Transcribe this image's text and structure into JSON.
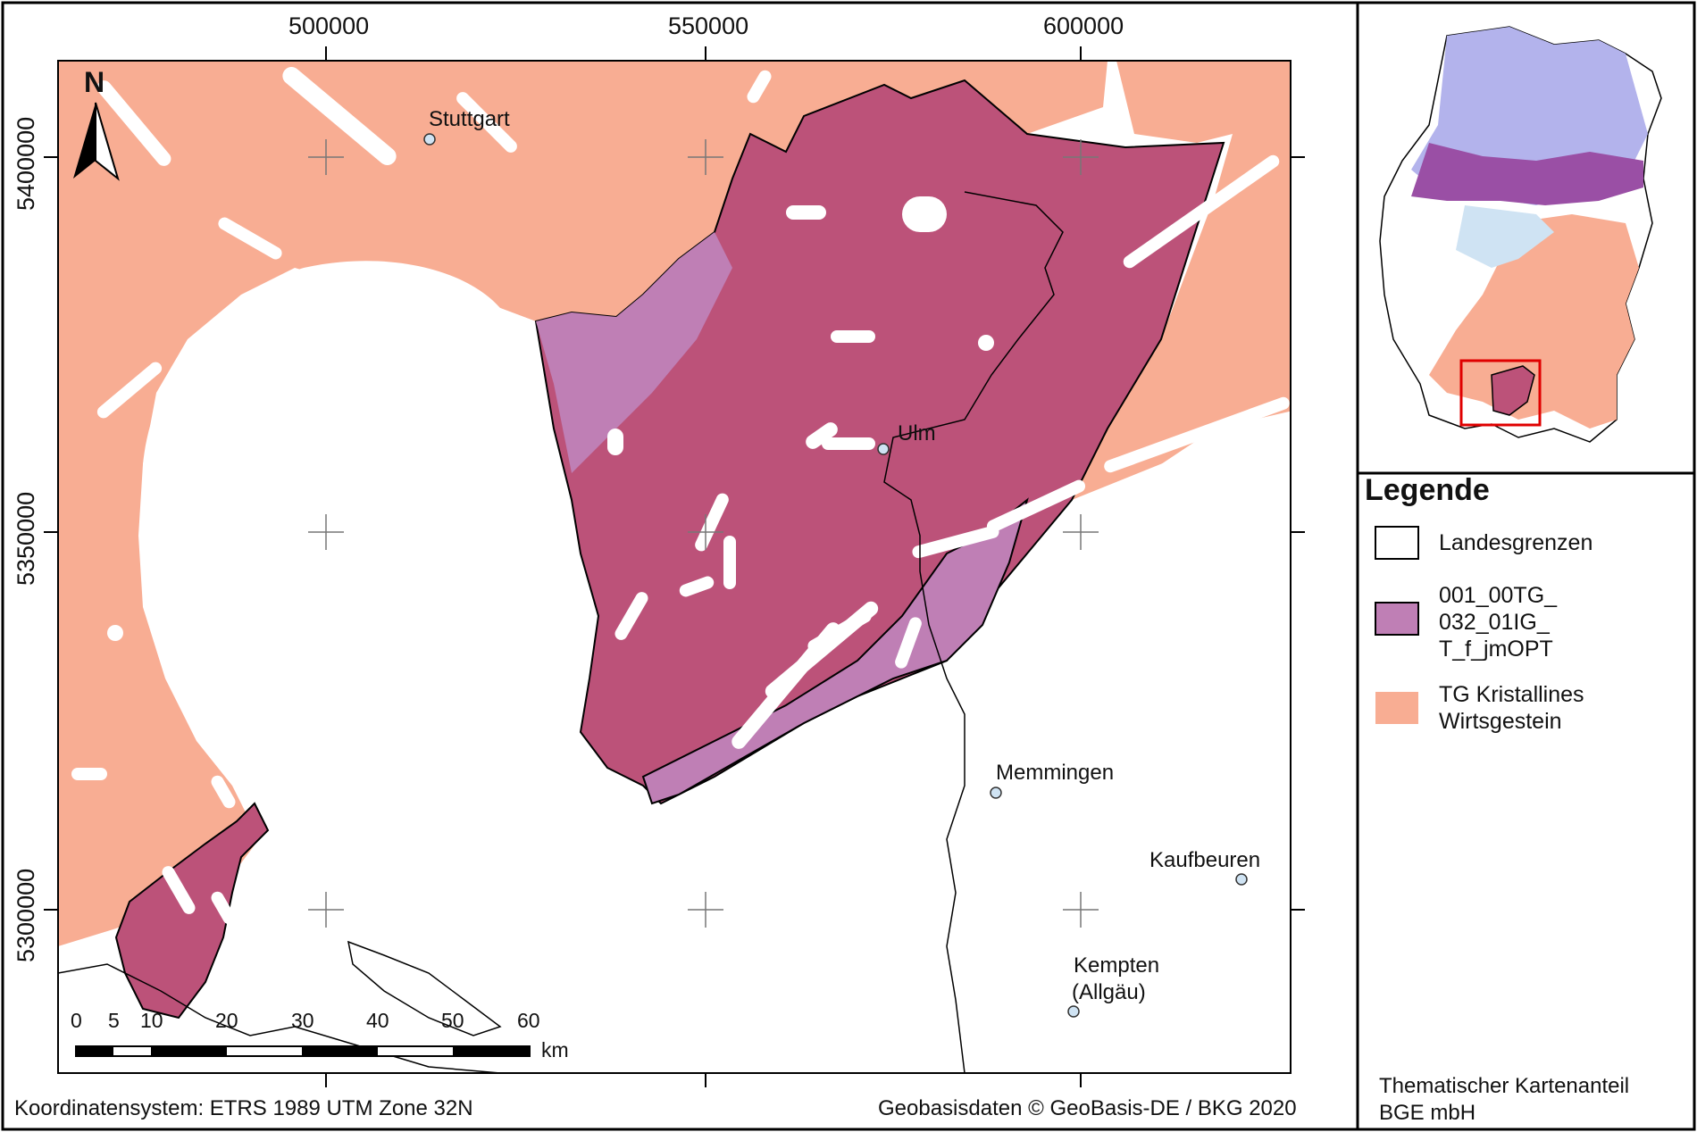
{
  "map": {
    "x_ticks": [
      "500000",
      "550000",
      "600000"
    ],
    "y_ticks": [
      "5400000",
      "5350000",
      "5300000"
    ],
    "north_label": "N",
    "cities": [
      {
        "name": "Stuttgart"
      },
      {
        "name": "Ulm"
      },
      {
        "name": "Memmingen"
      },
      {
        "name": "Kaufbeuren"
      },
      {
        "name": "Kempten"
      },
      {
        "name_line2": "(Allgäu)"
      }
    ],
    "scale_bar": {
      "labels": [
        "0",
        "5",
        "10",
        "20",
        "30",
        "40",
        "50",
        "60"
      ],
      "unit": "km"
    },
    "colors": {
      "crystalline": "#f8ad93",
      "unit_dark": "#bc5279",
      "unit_light": "#bf7fb5",
      "border": "#000000"
    }
  },
  "legend": {
    "title": "Legende",
    "items": [
      {
        "lines": [
          "Landesgrenzen"
        ],
        "fill": "#ffffff",
        "stroke": "#000000"
      },
      {
        "lines": [
          "001_00TG_",
          "032_01IG_",
          "T_f_jmOPT"
        ],
        "fill": "#bf7fb5",
        "stroke": "#000000"
      },
      {
        "lines": [
          "TG Kristallines",
          "Wirtsgestein"
        ],
        "fill": "#f8ad93",
        "stroke": "none"
      }
    ]
  },
  "footer": {
    "crs": "Koordinatensystem: ETRS 1989 UTM Zone 32N",
    "copyright": "Geobasisdaten © GeoBasis-DE / BKG 2020",
    "credit_line1": "Thematischer Kartenanteil",
    "credit_line2": "BGE mbH"
  }
}
